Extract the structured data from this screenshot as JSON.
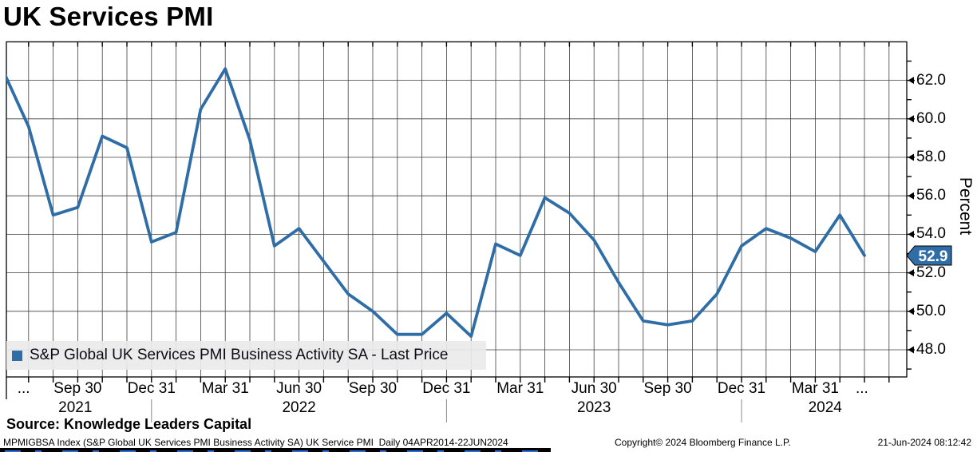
{
  "title": "UK Services PMI",
  "legend": {
    "label": "S&P Global UK Services PMI Business Activity SA - Last Price"
  },
  "last_price": {
    "value": "52.9"
  },
  "y_axis": {
    "title": "Percent"
  },
  "source_line": "Source: Knowledge Leaders Capital",
  "footer": {
    "left": "MPMIGBSA Index (S&P Global UK Services PMI Business Activity SA) UK Service PMI  Daily 04APR2014-22JUN2024",
    "copyright": "Copyright© 2024 Bloomberg Finance L.P.",
    "timestamp": "21-Jun-2024 08:12:42"
  },
  "colors": {
    "line": "#2f6da7",
    "badge_bg": "#2f6da7",
    "badge_text": "#ffffff",
    "grid": "#3f3f3f",
    "axis": "#000000",
    "legend_bg": "#eaeaea"
  },
  "chart_data": {
    "type": "line",
    "title": "UK Services PMI",
    "ylabel": "Percent",
    "series_name": "S&P Global UK Services PMI Business Activity SA - Last Price",
    "x": [
      "Jun 2021",
      "Jul 2021",
      "Aug 2021",
      "Sep 2021",
      "Oct 2021",
      "Nov 2021",
      "Dec 2021",
      "Jan 2022",
      "Feb 2022",
      "Mar 2022",
      "Apr 2022",
      "May 2022",
      "Jun 2022",
      "Jul 2022",
      "Aug 2022",
      "Sep 2022",
      "Oct 2022",
      "Nov 2022",
      "Dec 2022",
      "Jan 2023",
      "Feb 2023",
      "Mar 2023",
      "Apr 2023",
      "May 2023",
      "Jun 2023",
      "Jul 2023",
      "Aug 2023",
      "Sep 2023",
      "Oct 2023",
      "Nov 2023",
      "Dec 2023",
      "Jan 2024",
      "Feb 2024",
      "Mar 2024",
      "Apr 2024",
      "May 2024"
    ],
    "values": [
      62.4,
      59.6,
      55.0,
      55.4,
      59.1,
      58.5,
      53.6,
      54.1,
      60.5,
      62.6,
      58.9,
      53.4,
      54.3,
      52.6,
      50.9,
      50.0,
      48.8,
      48.8,
      49.9,
      48.7,
      53.5,
      52.9,
      55.9,
      55.1,
      53.7,
      51.5,
      49.5,
      49.3,
      49.5,
      50.9,
      53.4,
      54.3,
      53.8,
      53.1,
      55.0,
      52.9
    ],
    "last_value": 52.9,
    "ylim": [
      46.6,
      64.1
    ],
    "y_ticks": [
      {
        "v": 62,
        "label": "62.0"
      },
      {
        "v": 60,
        "label": "60.0"
      },
      {
        "v": 58,
        "label": "58.0"
      },
      {
        "v": 56,
        "label": "56.0"
      },
      {
        "v": 54,
        "label": "54.0"
      },
      {
        "v": 52,
        "label": "52.0"
      },
      {
        "v": 50,
        "label": "50.0"
      },
      {
        "v": 48,
        "label": "48.0"
      }
    ],
    "x_ticks": [
      {
        "label": "...",
        "m": 0.8
      },
      {
        "label": "Sep 30",
        "m": 3
      },
      {
        "label": "Dec 31",
        "m": 6
      },
      {
        "label": "Mar 31",
        "m": 9
      },
      {
        "label": "Jun 30",
        "m": 12
      },
      {
        "label": "Sep 30",
        "m": 15
      },
      {
        "label": "Dec 31",
        "m": 18
      },
      {
        "label": "Mar 31",
        "m": 21
      },
      {
        "label": "Jun 30",
        "m": 24
      },
      {
        "label": "Sep 30",
        "m": 27
      },
      {
        "label": "Dec 31",
        "m": 30
      },
      {
        "label": "Mar 31",
        "m": 33
      },
      {
        "label": "...",
        "m": 34.9
      }
    ],
    "year_labels": [
      {
        "label": "2021",
        "m": 2.9
      },
      {
        "label": "2022",
        "m": 12
      },
      {
        "label": "2023",
        "m": 24
      },
      {
        "label": "2024",
        "m": 33.4
      }
    ],
    "year_separators_m": [
      6,
      18,
      30
    ],
    "grid": true,
    "legend_position": "bottom-left-inside"
  }
}
